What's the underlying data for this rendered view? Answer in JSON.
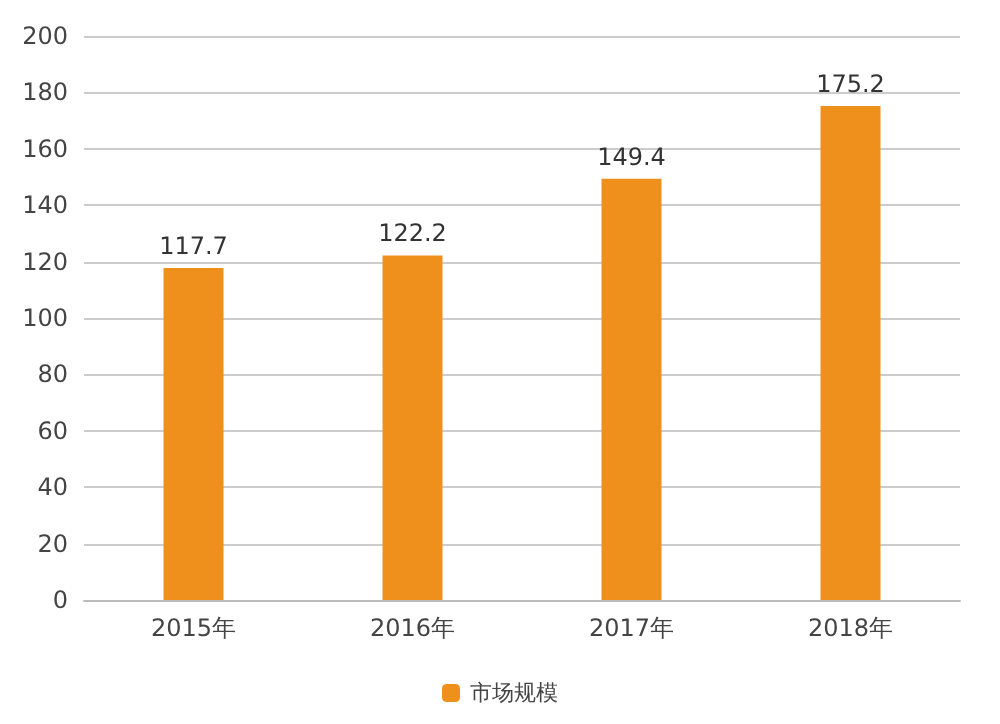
{
  "chart_data": {
    "type": "bar",
    "categories": [
      "2015年",
      "2016年",
      "2017年",
      "2018年"
    ],
    "series": [
      {
        "name": "市场规模",
        "color": "#f0901c",
        "values": [
          117.7,
          122.2,
          149.4,
          175.2
        ]
      }
    ],
    "ylim": [
      0,
      200
    ],
    "yticks": [
      0,
      20,
      40,
      60,
      80,
      100,
      120,
      140,
      160,
      180,
      200
    ],
    "grid": "y",
    "legend": "bottom",
    "data_labels": true
  }
}
